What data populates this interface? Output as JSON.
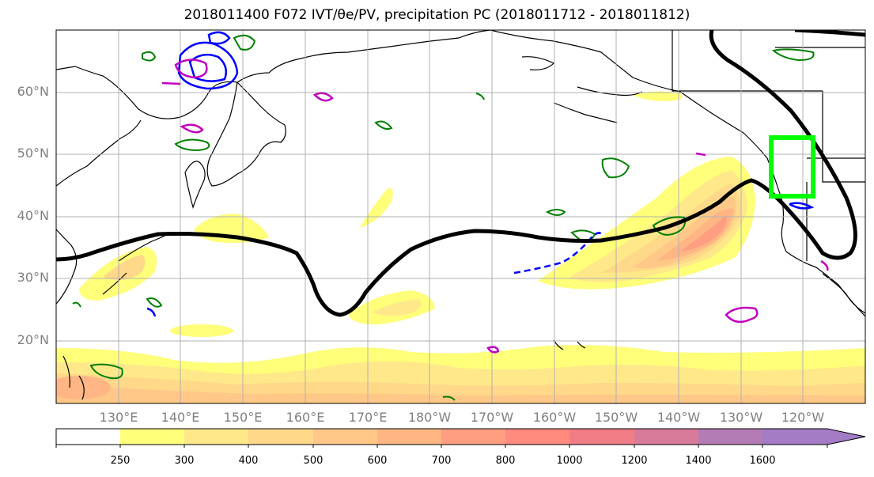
{
  "title": "2018011400 F072 IVT/θe/PV, precipitation PC (2018011712 - 2018011812)",
  "lat_labels": [
    "60°N",
    "50°N",
    "40°N",
    "30°N",
    "20°N"
  ],
  "lon_labels": [
    "130°E",
    "140°E",
    "150°E",
    "160°E",
    "170°E",
    "180°W",
    "170°W",
    "160°W",
    "150°W",
    "140°W",
    "130°W",
    "120°W"
  ],
  "colorbar": {
    "ticks": [
      "250",
      "300",
      "400",
      "500",
      "600",
      "700",
      "800",
      "1000",
      "1200",
      "1400",
      "1600"
    ],
    "colors": [
      "#ffffff",
      "#ffff7a",
      "#ffe88a",
      "#ffd88a",
      "#ffc888",
      "#ffb684",
      "#ff9e80",
      "#ff8a7e",
      "#f07c86",
      "#d87a9a",
      "#b47cb4",
      "#a47cc6"
    ]
  },
  "colors": {
    "land_outline": "#000000",
    "ridge_contour": "#000000",
    "theta_e_contour": "#008000",
    "pv_contour_blue": "#0000ff",
    "pv_contour_magenta": "#c000c0",
    "target_box": "#00ff00",
    "grid": "#b0b0b0"
  }
}
